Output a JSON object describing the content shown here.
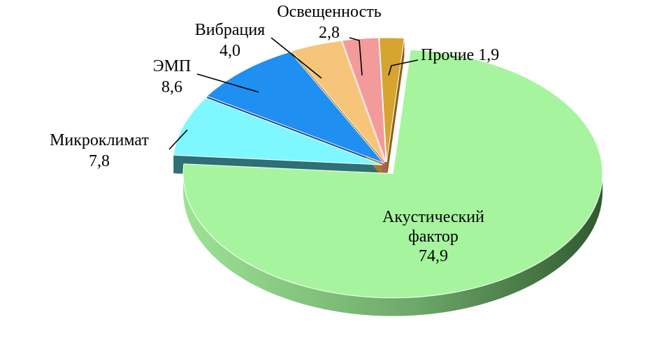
{
  "chart_data": {
    "type": "pie",
    "style": "3d-exploded",
    "categories": [
      "Акустический фактор",
      "Микроклимат",
      "ЭМП",
      "Вибрация",
      "Освещенность",
      "Прочие"
    ],
    "values": [
      74.9,
      7.8,
      8.6,
      4.0,
      2.8,
      1.9
    ],
    "value_labels": [
      "74,9",
      "7,8",
      "8,6",
      "4,0",
      "2,8",
      "1,9"
    ],
    "label_lines": [
      [
        "Акустический",
        "фактор",
        "74,9"
      ],
      [
        "Микроклимат",
        "7,8"
      ],
      [
        "ЭМП",
        "8,6"
      ],
      [
        "Вибрация",
        "4,0"
      ],
      [
        "Освещенность",
        "2,8"
      ],
      [
        "Прочие 1,9"
      ]
    ],
    "colors": [
      "#a6f59e",
      "#7ff7ff",
      "#1f8ff2",
      "#f6c57a",
      "#f39a9a",
      "#d7a430"
    ],
    "side_colors": [
      "#4f8c4e",
      "#2f6f76",
      "#0f4a86",
      "#a57b2e",
      "#b25a5a",
      "#8a6415"
    ]
  }
}
